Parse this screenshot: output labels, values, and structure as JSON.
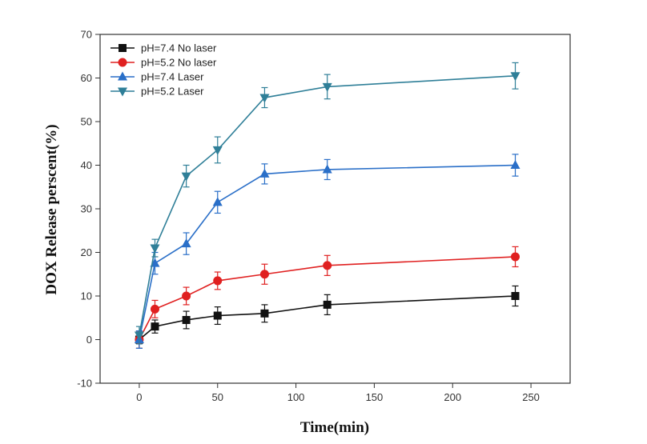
{
  "chart_data": {
    "type": "line",
    "xlabel": "Time(min)",
    "ylabel": "DOX Release perscent(%)",
    "xlim": [
      -25,
      275
    ],
    "ylim": [
      -10,
      70
    ],
    "xticks": [
      0,
      50,
      100,
      150,
      200,
      250
    ],
    "yticks": [
      -10,
      0,
      10,
      20,
      30,
      40,
      50,
      60,
      70
    ],
    "x": [
      0,
      10,
      30,
      50,
      80,
      120,
      240
    ],
    "legend_position": "top-left",
    "grid": false,
    "series": [
      {
        "name": "pH=7.4  No laser",
        "marker": "square",
        "color": "#111111",
        "values": [
          0,
          3,
          4.5,
          5.5,
          6,
          8,
          10
        ],
        "errors": [
          2,
          1.5,
          2,
          2,
          2,
          2.3,
          2.3
        ]
      },
      {
        "name": "pH=5.2  No laser",
        "marker": "circle",
        "color": "#e02020",
        "values": [
          0,
          7,
          10,
          13.5,
          15,
          17,
          19
        ],
        "errors": [
          2,
          2,
          2,
          2,
          2.3,
          2.3,
          2.3
        ]
      },
      {
        "name": "pH=7.4  Laser",
        "marker": "triangle-up",
        "color": "#2a6fc8",
        "values": [
          0,
          17.5,
          22,
          31.5,
          38,
          39,
          40
        ],
        "errors": [
          2,
          2.5,
          2.5,
          2.5,
          2.3,
          2.3,
          2.5
        ]
      },
      {
        "name": "pH=5.2  Laser",
        "marker": "triangle-down",
        "color": "#2f7f98",
        "values": [
          1,
          21,
          37.5,
          43.5,
          55.5,
          58,
          60.5
        ],
        "errors": [
          2,
          2,
          2.5,
          3,
          2.3,
          2.8,
          3
        ]
      }
    ]
  }
}
